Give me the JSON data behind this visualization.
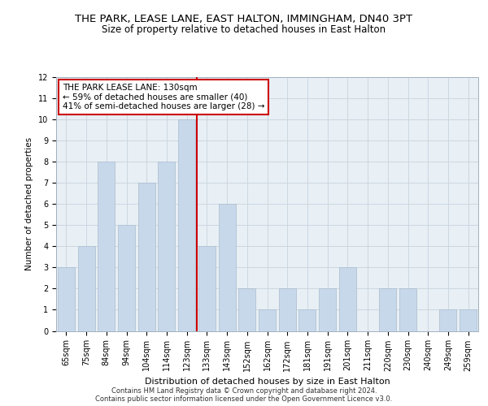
{
  "title": "THE PARK, LEASE LANE, EAST HALTON, IMMINGHAM, DN40 3PT",
  "subtitle": "Size of property relative to detached houses in East Halton",
  "xlabel": "Distribution of detached houses by size in East Halton",
  "ylabel": "Number of detached properties",
  "categories": [
    "65sqm",
    "75sqm",
    "84sqm",
    "94sqm",
    "104sqm",
    "114sqm",
    "123sqm",
    "133sqm",
    "143sqm",
    "152sqm",
    "162sqm",
    "172sqm",
    "181sqm",
    "191sqm",
    "201sqm",
    "211sqm",
    "220sqm",
    "230sqm",
    "240sqm",
    "249sqm",
    "259sqm"
  ],
  "values": [
    3,
    4,
    8,
    5,
    7,
    8,
    10,
    4,
    6,
    2,
    1,
    2,
    1,
    2,
    3,
    0,
    2,
    2,
    0,
    1,
    1
  ],
  "bar_color": "#c8d8eb",
  "bar_edge_color": "#aabccc",
  "highlight_bar_index": 6,
  "highlight_line_color": "#cc0000",
  "annotation_text": "THE PARK LEASE LANE: 130sqm\n← 59% of detached houses are smaller (40)\n41% of semi-detached houses are larger (28) →",
  "annotation_box_color": "#ffffff",
  "annotation_box_edge_color": "#cc0000",
  "ylim": [
    0,
    12
  ],
  "yticks": [
    0,
    1,
    2,
    3,
    4,
    5,
    6,
    7,
    8,
    9,
    10,
    11,
    12
  ],
  "grid_color": "#c8d4de",
  "background_color": "#e8eff5",
  "footer_line1": "Contains HM Land Registry data © Crown copyright and database right 2024.",
  "footer_line2": "Contains public sector information licensed under the Open Government Licence v3.0.",
  "title_fontsize": 9.5,
  "subtitle_fontsize": 8.5,
  "annotation_fontsize": 7.5,
  "axis_label_fontsize": 7.5,
  "tick_fontsize": 7.0,
  "xlabel_fontsize": 8.0,
  "footer_fontsize": 6.0
}
